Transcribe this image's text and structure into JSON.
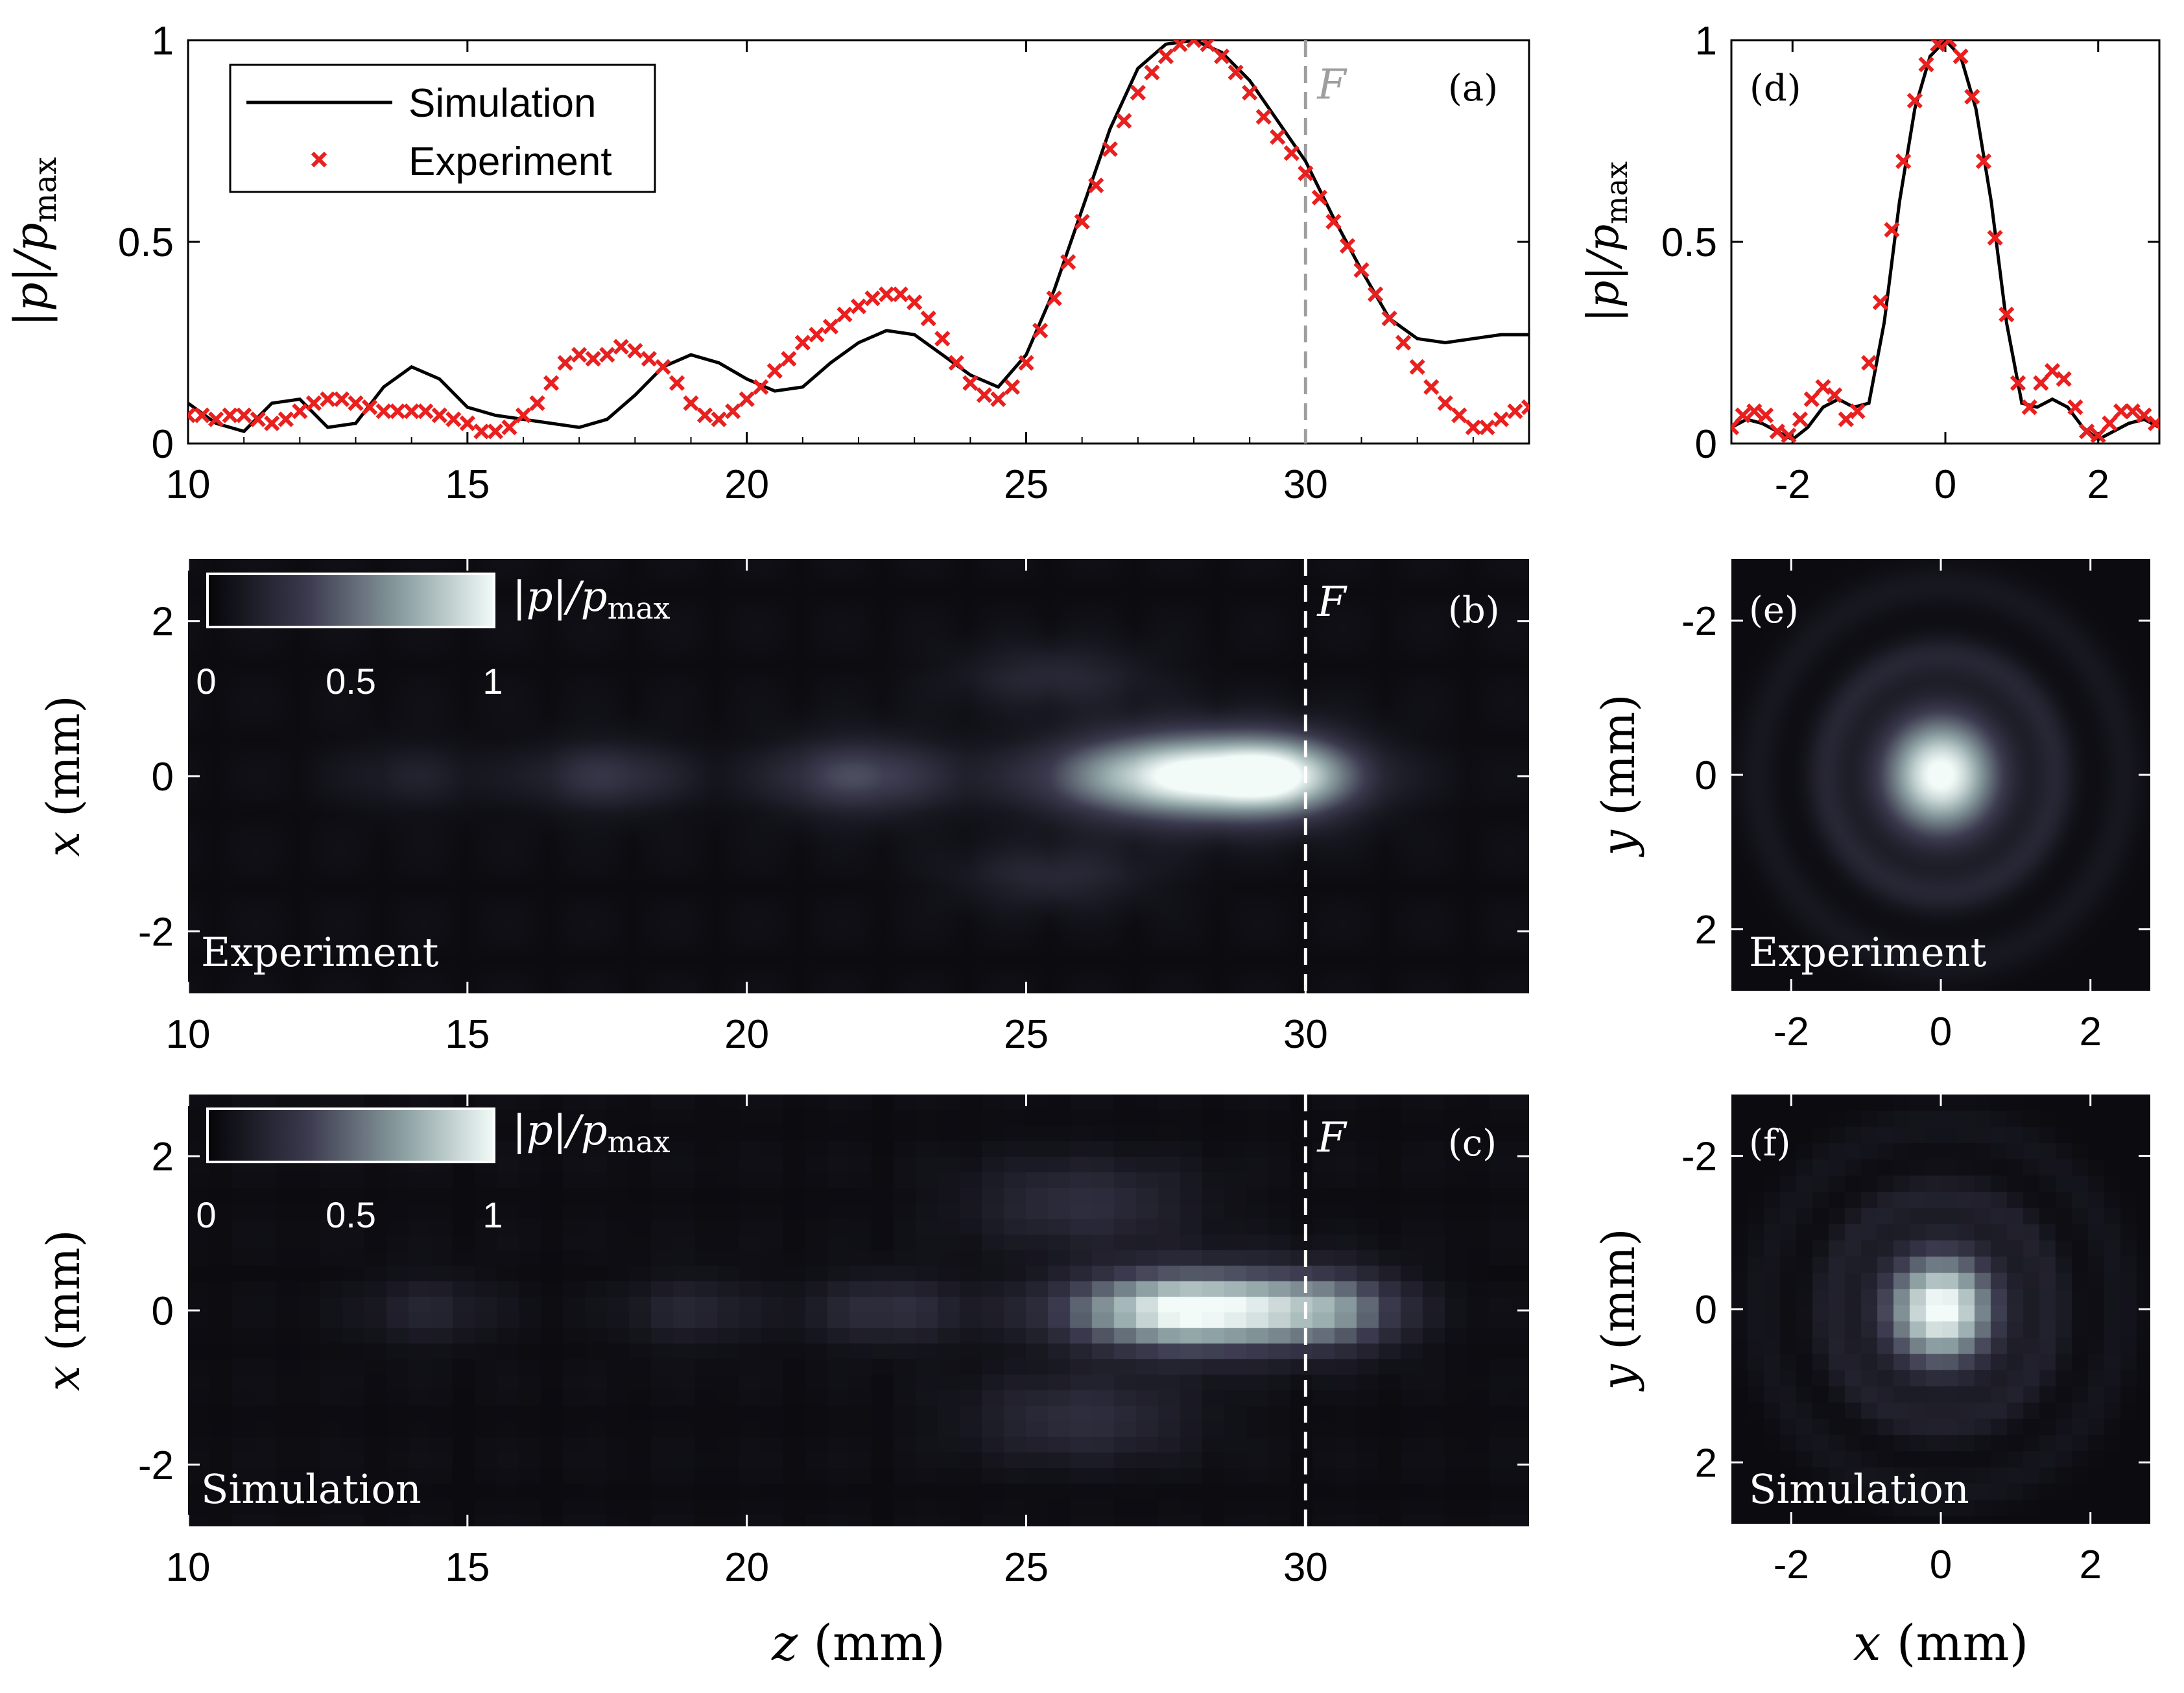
{
  "chart_data": [
    {
      "id": "a",
      "type": "line",
      "panel_label": "(a)",
      "ylabel": "|p|/p_max",
      "ylabel_parts": {
        "main": "|p|/p",
        "sub": "max"
      },
      "xlim": [
        10,
        34
      ],
      "ylim": [
        0,
        1
      ],
      "xticks": [
        "10",
        "15",
        "20",
        "25",
        "30"
      ],
      "yticks": [
        "0",
        "0.5",
        "1"
      ],
      "vline": {
        "x": 30,
        "label": "F",
        "color": "#9e9e9e"
      },
      "legend": {
        "placement": "top-left",
        "entries": [
          "Simulation",
          "Experiment"
        ]
      },
      "series": [
        {
          "name": "Simulation",
          "style": "line",
          "color": "#000000",
          "x": [
            10,
            10.5,
            11,
            11.5,
            12,
            12.5,
            13,
            13.5,
            14,
            14.5,
            15,
            15.5,
            16,
            16.5,
            17,
            17.5,
            18,
            18.5,
            19,
            19.5,
            20,
            20.5,
            21,
            21.5,
            22,
            22.5,
            23,
            23.5,
            24,
            24.5,
            25,
            25.5,
            26,
            26.5,
            27,
            27.5,
            28,
            28.5,
            29,
            29.5,
            30,
            30.5,
            31,
            31.5,
            32,
            32.5,
            33,
            33.5,
            34
          ],
          "y": [
            0.1,
            0.05,
            0.03,
            0.1,
            0.11,
            0.04,
            0.05,
            0.14,
            0.19,
            0.16,
            0.09,
            0.07,
            0.06,
            0.05,
            0.04,
            0.06,
            0.12,
            0.19,
            0.22,
            0.2,
            0.16,
            0.13,
            0.14,
            0.2,
            0.25,
            0.28,
            0.27,
            0.22,
            0.17,
            0.14,
            0.22,
            0.38,
            0.58,
            0.78,
            0.93,
            0.99,
            1.0,
            0.97,
            0.9,
            0.8,
            0.7,
            0.56,
            0.43,
            0.31,
            0.26,
            0.25,
            0.26,
            0.27,
            0.27
          ]
        },
        {
          "name": "Experiment",
          "style": "markers",
          "marker": "x",
          "color": "#e8201f",
          "x": [
            10,
            10.25,
            10.5,
            10.75,
            11,
            11.25,
            11.5,
            11.75,
            12,
            12.25,
            12.5,
            12.75,
            13,
            13.25,
            13.5,
            13.75,
            14,
            14.25,
            14.5,
            14.75,
            15,
            15.25,
            15.5,
            15.75,
            16,
            16.25,
            16.5,
            16.75,
            17,
            17.25,
            17.5,
            17.75,
            18,
            18.25,
            18.5,
            18.75,
            19,
            19.25,
            19.5,
            19.75,
            20,
            20.25,
            20.5,
            20.75,
            21,
            21.25,
            21.5,
            21.75,
            22,
            22.25,
            22.5,
            22.75,
            23,
            23.25,
            23.5,
            23.75,
            24,
            24.25,
            24.5,
            24.75,
            25,
            25.25,
            25.5,
            25.75,
            26,
            26.25,
            26.5,
            26.75,
            27,
            27.25,
            27.5,
            27.75,
            28,
            28.25,
            28.5,
            28.75,
            29,
            29.25,
            29.5,
            29.75,
            30,
            30.25,
            30.5,
            30.75,
            31,
            31.25,
            31.5,
            31.75,
            32,
            32.25,
            32.5,
            32.75,
            33,
            33.25,
            33.5,
            33.75,
            34
          ],
          "y": [
            0.07,
            0.07,
            0.06,
            0.07,
            0.07,
            0.06,
            0.05,
            0.06,
            0.08,
            0.1,
            0.11,
            0.11,
            0.1,
            0.09,
            0.08,
            0.08,
            0.08,
            0.08,
            0.07,
            0.06,
            0.05,
            0.03,
            0.03,
            0.04,
            0.07,
            0.1,
            0.15,
            0.2,
            0.22,
            0.21,
            0.22,
            0.24,
            0.23,
            0.21,
            0.19,
            0.15,
            0.1,
            0.07,
            0.06,
            0.08,
            0.11,
            0.14,
            0.18,
            0.21,
            0.25,
            0.27,
            0.29,
            0.32,
            0.34,
            0.36,
            0.37,
            0.37,
            0.35,
            0.31,
            0.26,
            0.2,
            0.15,
            0.12,
            0.11,
            0.14,
            0.2,
            0.28,
            0.36,
            0.45,
            0.55,
            0.64,
            0.73,
            0.8,
            0.87,
            0.92,
            0.96,
            0.99,
            1.0,
            0.99,
            0.96,
            0.92,
            0.87,
            0.81,
            0.76,
            0.72,
            0.67,
            0.61,
            0.55,
            0.49,
            0.43,
            0.37,
            0.31,
            0.25,
            0.19,
            0.14,
            0.1,
            0.07,
            0.04,
            0.04,
            0.06,
            0.08,
            0.09
          ]
        }
      ]
    },
    {
      "id": "d",
      "type": "line",
      "panel_label": "(d)",
      "ylabel": "|p|/p_max",
      "ylabel_parts": {
        "main": "|p|/p",
        "sub": "max"
      },
      "xlim": [
        -2.8,
        2.8
      ],
      "ylim": [
        0,
        1
      ],
      "xticks": [
        "-2",
        "0",
        "2"
      ],
      "yticks": [
        "0",
        "0.5",
        "1"
      ],
      "series": [
        {
          "name": "Simulation",
          "style": "line",
          "color": "#000000",
          "x": [
            -2.8,
            -2.6,
            -2.4,
            -2.2,
            -2.0,
            -1.8,
            -1.6,
            -1.4,
            -1.2,
            -1.0,
            -0.8,
            -0.6,
            -0.4,
            -0.2,
            0.0,
            0.2,
            0.4,
            0.6,
            0.8,
            1.0,
            1.2,
            1.4,
            1.6,
            1.8,
            2.0,
            2.2,
            2.4,
            2.6,
            2.8
          ],
          "y": [
            0.04,
            0.06,
            0.05,
            0.03,
            0.01,
            0.04,
            0.09,
            0.11,
            0.09,
            0.1,
            0.3,
            0.6,
            0.83,
            0.96,
            1.0,
            0.96,
            0.83,
            0.6,
            0.3,
            0.1,
            0.09,
            0.11,
            0.09,
            0.04,
            0.01,
            0.03,
            0.05,
            0.06,
            0.04
          ]
        },
        {
          "name": "Experiment",
          "style": "markers",
          "marker": "x",
          "color": "#e8201f",
          "x": [
            -2.8,
            -2.65,
            -2.5,
            -2.35,
            -2.2,
            -2.05,
            -1.9,
            -1.75,
            -1.6,
            -1.45,
            -1.3,
            -1.15,
            -1.0,
            -0.85,
            -0.7,
            -0.55,
            -0.4,
            -0.25,
            -0.1,
            0.05,
            0.2,
            0.35,
            0.5,
            0.65,
            0.8,
            0.95,
            1.1,
            1.25,
            1.4,
            1.55,
            1.7,
            1.85,
            2.0,
            2.15,
            2.3,
            2.45,
            2.6,
            2.75
          ],
          "y": [
            0.04,
            0.07,
            0.08,
            0.07,
            0.03,
            0.02,
            0.06,
            0.11,
            0.14,
            0.12,
            0.06,
            0.08,
            0.2,
            0.35,
            0.53,
            0.7,
            0.85,
            0.94,
            0.99,
            1.0,
            0.96,
            0.86,
            0.7,
            0.51,
            0.32,
            0.15,
            0.09,
            0.15,
            0.18,
            0.16,
            0.09,
            0.03,
            0.02,
            0.05,
            0.08,
            0.08,
            0.07,
            0.05
          ]
        }
      ]
    },
    {
      "id": "b",
      "type": "heatmap",
      "panel_label": "(b)",
      "title_overlay": "Experiment",
      "xlabel": "",
      "ylabel": "x (mm)",
      "ylabel_parts": {
        "var": "x",
        "unit": " (mm)"
      },
      "xlim": [
        10,
        34
      ],
      "ylim": [
        -2.8,
        2.8
      ],
      "xticks": [
        "10",
        "15",
        "20",
        "25",
        "30"
      ],
      "yticks": [
        "2",
        "0",
        "-2"
      ],
      "vline": {
        "x": 30,
        "label": "F",
        "color": "#ffffff"
      },
      "colorbar": {
        "label": "|p|/p_max",
        "label_parts": {
          "main": "|p|/p",
          "sub": "max"
        },
        "ticks": [
          "0",
          "0.5",
          "1"
        ]
      },
      "lobes": [
        {
          "z": 28.0,
          "x": 0.0,
          "dz": 2.4,
          "dx": 0.55,
          "amp": 1.0
        },
        {
          "z": 29.6,
          "x": 0.0,
          "dz": 1.2,
          "dx": 0.5,
          "amp": 0.45
        },
        {
          "z": 22.0,
          "x": 0.0,
          "dz": 1.6,
          "dx": 0.5,
          "amp": 0.35
        },
        {
          "z": 17.5,
          "x": 0.0,
          "dz": 1.4,
          "dx": 0.45,
          "amp": 0.25
        },
        {
          "z": 14.0,
          "x": 0.0,
          "dz": 1.3,
          "dx": 0.45,
          "amp": 0.12
        },
        {
          "z": 25.5,
          "x": 1.3,
          "dz": 1.8,
          "dx": 0.4,
          "amp": 0.18
        },
        {
          "z": 25.5,
          "x": -1.3,
          "dz": 1.8,
          "dx": 0.4,
          "amp": 0.18
        }
      ]
    },
    {
      "id": "c",
      "type": "heatmap",
      "panel_label": "(c)",
      "title_overlay": "Simulation",
      "xlabel": "z (mm)",
      "xlabel_parts": {
        "var": "z",
        "unit": " (mm)"
      },
      "ylabel": "x (mm)",
      "ylabel_parts": {
        "var": "x",
        "unit": " (mm)"
      },
      "xlim": [
        10,
        34
      ],
      "ylim": [
        -2.8,
        2.8
      ],
      "xticks": [
        "10",
        "15",
        "20",
        "25",
        "30"
      ],
      "yticks": [
        "2",
        "0",
        "-2"
      ],
      "vline": {
        "x": 30,
        "label": "F",
        "color": "#ffffff"
      },
      "colorbar": {
        "label": "|p|/p_max",
        "label_parts": {
          "main": "|p|/p",
          "sub": "max"
        },
        "ticks": [
          "0",
          "0.5",
          "1"
        ]
      },
      "lobes": [
        {
          "z": 28.0,
          "x": 0.0,
          "dz": 2.2,
          "dx": 0.5,
          "amp": 1.0
        },
        {
          "z": 30.5,
          "x": 0.0,
          "dz": 1.3,
          "dx": 0.5,
          "amp": 0.4
        },
        {
          "z": 22.5,
          "x": 0.0,
          "dz": 1.4,
          "dx": 0.45,
          "amp": 0.22
        },
        {
          "z": 19.0,
          "x": 0.0,
          "dz": 1.2,
          "dx": 0.45,
          "amp": 0.16
        },
        {
          "z": 14.3,
          "x": 0.0,
          "dz": 1.2,
          "dx": 0.45,
          "amp": 0.15
        },
        {
          "z": 26.0,
          "x": 1.4,
          "dz": 2.0,
          "dx": 0.55,
          "amp": 0.22
        },
        {
          "z": 26.0,
          "x": -1.4,
          "dz": 2.0,
          "dx": 0.55,
          "amp": 0.22
        }
      ]
    },
    {
      "id": "e",
      "type": "heatmap",
      "panel_label": "(e)",
      "title_overlay": "Experiment",
      "xlabel": "",
      "ylabel": "y (mm)",
      "ylabel_parts": {
        "var": "y",
        "unit": " (mm)"
      },
      "xlim": [
        -2.8,
        2.8
      ],
      "ylim": [
        -2.8,
        2.8
      ],
      "xticks": [
        "-2",
        "0",
        "2"
      ],
      "yticks": [
        "-2",
        "0",
        "2"
      ],
      "rings": {
        "core_radius": 0.85,
        "ring_radii": [
          1.55,
          2.45
        ],
        "ring_amp": 0.16
      }
    },
    {
      "id": "f",
      "type": "heatmap",
      "panel_label": "(f)",
      "title_overlay": "Simulation",
      "xlabel": "x (mm)",
      "xlabel_parts": {
        "var": "x",
        "unit": " (mm)"
      },
      "ylabel": "y (mm)",
      "ylabel_parts": {
        "var": "y",
        "unit": " (mm)"
      },
      "xlim": [
        -2.8,
        2.8
      ],
      "ylim": [
        -2.8,
        2.8
      ],
      "xticks": [
        "-2",
        "0",
        "2"
      ],
      "yticks": [
        "-2",
        "0",
        "2"
      ],
      "rings": {
        "core_radius": 0.8,
        "ring_radii": [
          1.5,
          2.4
        ],
        "ring_amp": 0.13
      }
    }
  ],
  "colors": {
    "experiment": "#e8201f",
    "simulation": "#000000",
    "focus_line_a": "#9e9e9e",
    "focus_line_map": "#ffffff"
  }
}
